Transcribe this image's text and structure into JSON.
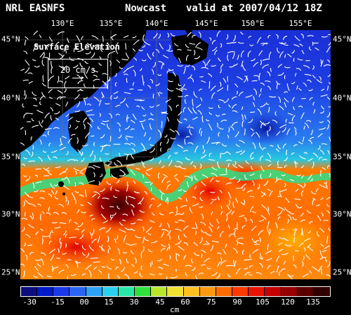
{
  "header": {
    "model": "NRL EASNFS",
    "mode": "Nowcast",
    "valid": "valid at 2007/04/12 18Z"
  },
  "map": {
    "field_label": "Surface Elevation",
    "vector_scale_label": "20 cm/s",
    "longitude_labels": [
      "130°E",
      "135°E",
      "140°E",
      "145°E",
      "150°E",
      "155°E"
    ],
    "latitude_labels_left": [
      "45°N",
      "40°N",
      "35°N",
      "30°N",
      "25°N"
    ],
    "latitude_labels_right": [
      "45°N",
      "40°N",
      "35°N",
      "30°N",
      "25°N"
    ],
    "colors": {
      "land": "#000000",
      "north_low": "#1630d8",
      "mid": "#27b6f0",
      "front": "#2ee07a",
      "warm": "#ff7a00",
      "hot": "#e00000",
      "eddy": "#3a0000"
    }
  },
  "colorbar": {
    "tick_labels": [
      "-30",
      "-15",
      "00",
      "15",
      "30",
      "45",
      "60",
      "75",
      "90",
      "105",
      "120",
      "135"
    ],
    "unit": "cm",
    "colors": [
      "#0d0d82",
      "#0019c8",
      "#1a39e8",
      "#2a64f0",
      "#2ea0f5",
      "#29d0f0",
      "#27e8a6",
      "#2fdf3c",
      "#b7e62d",
      "#f0e030",
      "#ffc020",
      "#ff9a10",
      "#ff6b00",
      "#ff3a00",
      "#ea1300",
      "#c50000",
      "#960000",
      "#5a0000",
      "#300000"
    ]
  }
}
